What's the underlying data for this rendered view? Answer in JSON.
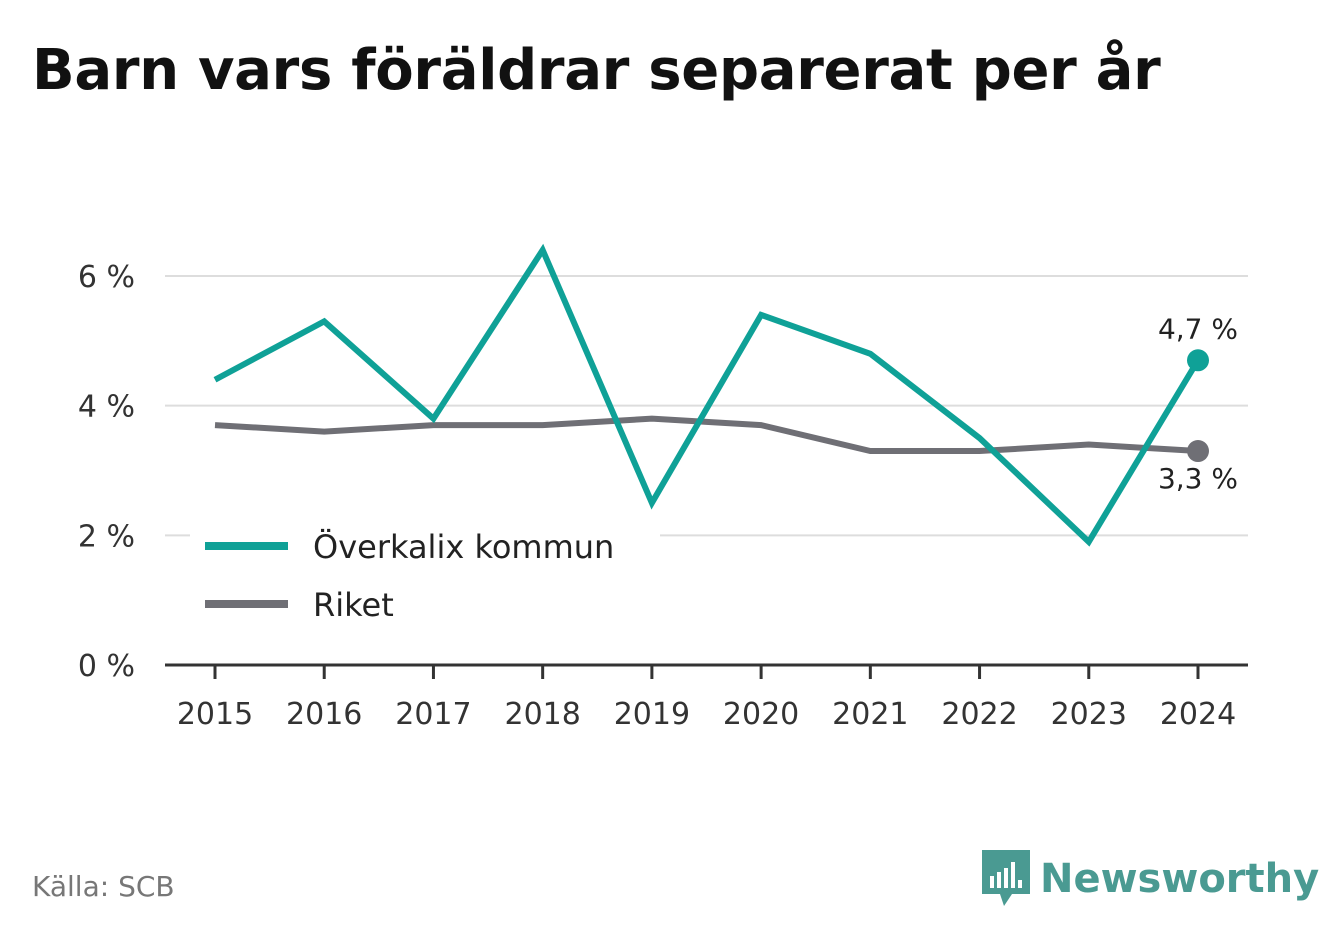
{
  "title": "Barn vars föräldrar separerat per år",
  "source": "Källa: SCB",
  "brand": {
    "name": "Newsworthy",
    "icon": "newsworthy-logo-icon",
    "color": "#4a9a92"
  },
  "chart_data": {
    "type": "line",
    "x": [
      "2015",
      "2016",
      "2017",
      "2018",
      "2019",
      "2020",
      "2021",
      "2022",
      "2023",
      "2024"
    ],
    "series": [
      {
        "name": "Överkalix kommun",
        "color": "#0fa197",
        "values": [
          4.4,
          5.3,
          3.8,
          6.4,
          2.5,
          5.4,
          4.8,
          3.5,
          1.9,
          4.7
        ],
        "end_label": "4,7 %"
      },
      {
        "name": "Riket",
        "color": "#6f6f75",
        "values": [
          3.7,
          3.6,
          3.7,
          3.7,
          3.8,
          3.7,
          3.3,
          3.3,
          3.4,
          3.3
        ],
        "end_label": "3,3 %"
      }
    ],
    "y_ticks": [
      {
        "value": 0,
        "label": "0 %"
      },
      {
        "value": 2,
        "label": "2 %"
      },
      {
        "value": 4,
        "label": "4 %"
      },
      {
        "value": 6,
        "label": "6 %"
      }
    ],
    "ylim": [
      0,
      6.6
    ],
    "grid": true,
    "legend": "bottom-left"
  }
}
